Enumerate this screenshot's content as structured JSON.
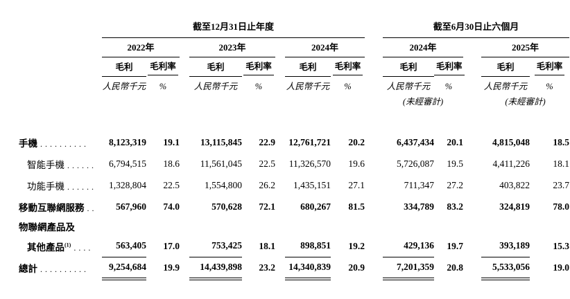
{
  "colors": {
    "text": "#000000",
    "background": "#ffffff",
    "rule": "#000000"
  },
  "header": {
    "annual_title": "截至12月31日止年度",
    "interim_title": "截至6月30日止六個月",
    "years": [
      "2022年",
      "2023年",
      "2024年",
      "2024年",
      "2025年"
    ],
    "gross_profit": "毛利",
    "gross_margin": "毛利率",
    "currency_unit": "人民幣千元",
    "percent_sign": "%",
    "unaudited": "(未經審計)"
  },
  "rows": [
    {
      "label": "手機",
      "leader": "..........",
      "sup": "",
      "indent": false,
      "bold": true,
      "underline": "none",
      "values": [
        "8,123,319",
        "19.1",
        "13,115,845",
        "22.9",
        "12,761,721",
        "20.2",
        "6,437,434",
        "20.1",
        "4,815,048",
        "18.5"
      ]
    },
    {
      "label": "智能手機",
      "leader": "......",
      "sup": "",
      "indent": true,
      "bold": false,
      "underline": "none",
      "values": [
        "6,794,515",
        "18.6",
        "11,561,045",
        "22.5",
        "11,326,570",
        "19.6",
        "5,726,087",
        "19.5",
        "4,411,226",
        "18.1"
      ]
    },
    {
      "label": "功能手機",
      "leader": "......",
      "sup": "",
      "indent": true,
      "bold": false,
      "underline": "none",
      "values": [
        "1,328,804",
        "22.5",
        "1,554,800",
        "26.2",
        "1,435,151",
        "27.1",
        "711,347",
        "27.2",
        "403,822",
        "23.7"
      ]
    },
    {
      "label": "移動互聯網服務",
      "leader": "..",
      "sup": "",
      "indent": false,
      "bold": true,
      "underline": "none",
      "values": [
        "567,960",
        "74.0",
        "570,628",
        "72.1",
        "680,267",
        "81.5",
        "334,789",
        "83.2",
        "324,819",
        "78.0"
      ]
    },
    {
      "label": "物聯網產品及",
      "leader": "",
      "sup": "",
      "indent": false,
      "bold": true,
      "underline": "none",
      "values": [
        "",
        "",
        "",
        "",
        "",
        "",
        "",
        "",
        "",
        ""
      ]
    },
    {
      "label": "其他產品",
      "leader": "....",
      "sup": "(1)",
      "indent": true,
      "bold": true,
      "underline": "single",
      "values": [
        "563,405",
        "17.0",
        "753,425",
        "18.1",
        "898,851",
        "19.2",
        "429,136",
        "19.7",
        "393,189",
        "15.3"
      ]
    },
    {
      "label": "總計",
      "leader": "..........",
      "sup": "",
      "indent": false,
      "bold": true,
      "underline": "double",
      "values": [
        "9,254,684",
        "19.9",
        "14,439,898",
        "23.2",
        "14,340,839",
        "20.9",
        "7,201,359",
        "20.8",
        "5,533,056",
        "19.0"
      ]
    }
  ]
}
